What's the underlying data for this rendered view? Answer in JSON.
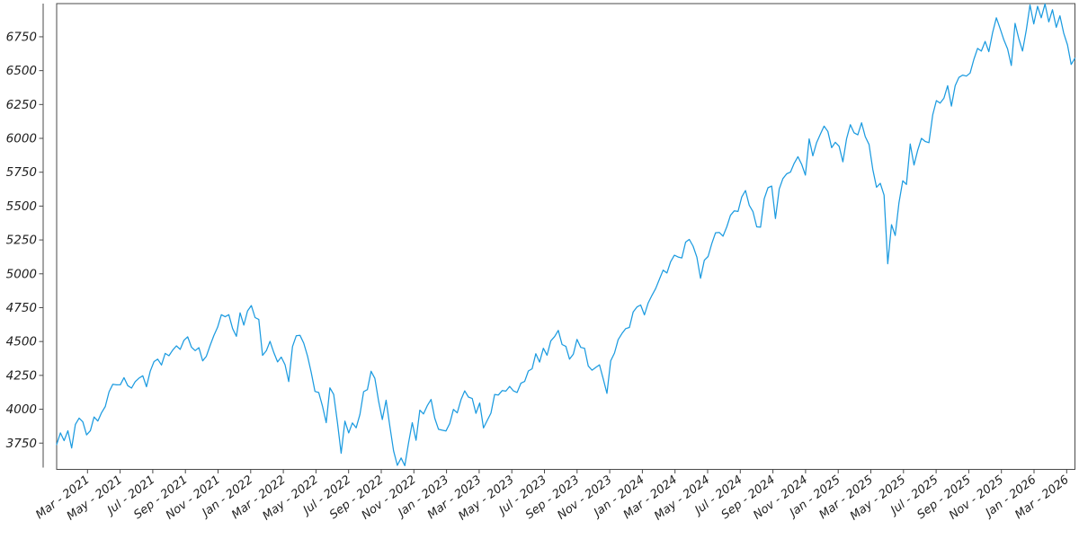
{
  "chart_data": {
    "type": "line",
    "title": "",
    "xlabel": "",
    "ylabel": "",
    "grid": false,
    "legend": false,
    "line_color": "#1c9be0",
    "spine_color": "#4a4a4a",
    "tick_label_color": "#1f1f1f",
    "ylim": [
      3556,
      6995
    ],
    "y_ticks": [
      3750,
      4000,
      4250,
      4500,
      4750,
      5000,
      5250,
      5500,
      5750,
      6000,
      6250,
      6500,
      6750
    ],
    "x_tick_interval_months": 2,
    "x_tick_labels": [
      "Mar - 2021",
      "May - 2021",
      "Jul - 2021",
      "Sep - 2021",
      "Nov - 2021",
      "Jan - 2022",
      "Mar - 2022",
      "May - 2022",
      "Jul - 2022",
      "Sep - 2022",
      "Nov - 2022",
      "Jan - 2023",
      "Mar - 2023",
      "May - 2023",
      "Jul - 2023",
      "Sep - 2023",
      "Nov - 2023",
      "Jan - 2024",
      "Mar - 2024",
      "May - 2024",
      "Jul - 2024",
      "Sep - 2024",
      "Nov - 2024",
      "Jan - 2025",
      "Mar - 2025",
      "May - 2025",
      "Jul - 2025",
      "Sep - 2025",
      "Nov - 2025",
      "Jan - 2026",
      "Mar - 2026"
    ],
    "series": [
      {
        "frequency": "weekly",
        "values": [
          3740,
          3825,
          3768,
          3841,
          3714,
          3887,
          3935,
          3907,
          3811,
          3842,
          3943,
          3913,
          3975,
          4020,
          4129,
          4185,
          4180,
          4181,
          4233,
          4174,
          4156,
          4204,
          4230,
          4247,
          4166,
          4281,
          4352,
          4370,
          4327,
          4412,
          4395,
          4437,
          4468,
          4442,
          4509,
          4535,
          4459,
          4433,
          4455,
          4357,
          4391,
          4471,
          4545,
          4605,
          4698,
          4683,
          4698,
          4595,
          4538,
          4712,
          4621,
          4726,
          4766,
          4677,
          4663,
          4398,
          4432,
          4501,
          4419,
          4349,
          4385,
          4329,
          4204,
          4463,
          4543,
          4546,
          4488,
          4393,
          4272,
          4132,
          4123,
          4024,
          3901,
          4158,
          4109,
          3901,
          3675,
          3912,
          3825,
          3899,
          3863,
          3962,
          4130,
          4145,
          4280,
          4228,
          4058,
          3924,
          4067,
          3873,
          3693,
          3586,
          3640,
          3583,
          3753,
          3901,
          3771,
          3993,
          3965,
          4026,
          4072,
          3934,
          3852,
          3845,
          3840,
          3895,
          3999,
          3973,
          4071,
          4136,
          4090,
          4079,
          3970,
          4046,
          3862,
          3917,
          3971,
          4109,
          4105,
          4138,
          4134,
          4169,
          4136,
          4124,
          4192,
          4205,
          4282,
          4299,
          4410,
          4348,
          4450,
          4399,
          4505,
          4536,
          4582,
          4478,
          4464,
          4370,
          4406,
          4516,
          4457,
          4450,
          4320,
          4288,
          4309,
          4328,
          4224,
          4117,
          4358,
          4415,
          4514,
          4559,
          4595,
          4604,
          4719,
          4755,
          4770,
          4697,
          4784,
          4840,
          4891,
          4959,
          5027,
          5006,
          5089,
          5137,
          5124,
          5117,
          5234,
          5254,
          5204,
          5123,
          4967,
          5100,
          5128,
          5223,
          5303,
          5305,
          5278,
          5347,
          5432,
          5465,
          5460,
          5567,
          5615,
          5505,
          5459,
          5347,
          5344,
          5554,
          5635,
          5648,
          5408,
          5626,
          5703,
          5738,
          5751,
          5815,
          5865,
          5808,
          5729,
          5996,
          5871,
          5969,
          6032,
          6090,
          6051,
          5931,
          5971,
          5942,
          5827,
          5997,
          6101,
          6041,
          6026,
          6115,
          6013,
          5955,
          5770,
          5639,
          5668,
          5581,
          5074,
          5363,
          5283,
          5525,
          5687,
          5660,
          5958,
          5803,
          5912,
          6000,
          5977,
          5968,
          6173,
          6279,
          6260,
          6297,
          6389,
          6238,
          6389,
          6450,
          6467,
          6460,
          6482,
          6584,
          6664,
          6644,
          6716,
          6640,
          6780,
          6890,
          6812,
          6728,
          6660,
          6538,
          6849,
          6737,
          6645,
          6800,
          6985,
          6845,
          6975,
          6890,
          6995,
          6860,
          6950,
          6820,
          6905,
          6777,
          6690,
          6546,
          6592
        ]
      }
    ]
  }
}
